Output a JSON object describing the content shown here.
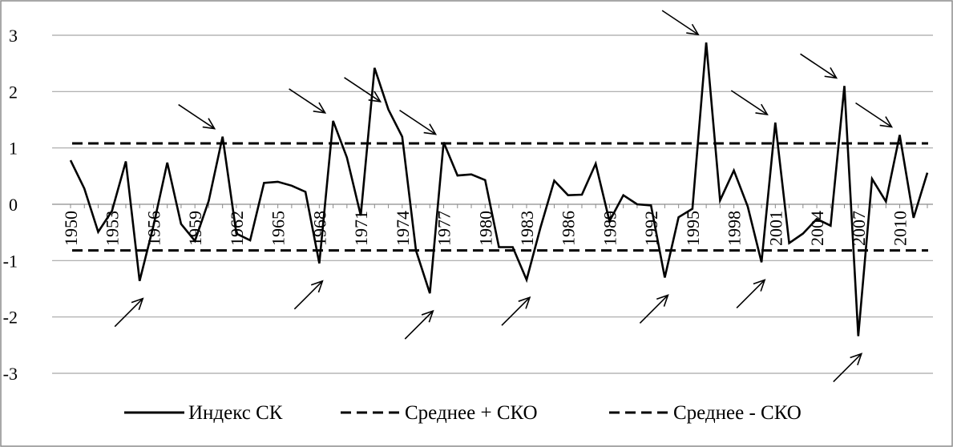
{
  "chart_data": {
    "type": "line",
    "title": "",
    "xlabel": "",
    "ylabel": "",
    "ylim": [
      -3,
      3
    ],
    "yticks": [
      3,
      2,
      1,
      0,
      -1,
      -2,
      -3
    ],
    "xlim": [
      1950,
      2012
    ],
    "xticks": [
      1950,
      1953,
      1956,
      1959,
      1962,
      1965,
      1968,
      1971,
      1974,
      1977,
      1980,
      1983,
      1986,
      1989,
      1992,
      1995,
      1998,
      2001,
      2004,
      2007,
      2010
    ],
    "grid": "horizontal",
    "legend_position": "bottom",
    "series": [
      {
        "name": "Индекс СК",
        "style": "solid",
        "color": "#000000",
        "x": [
          1950,
          1951,
          1952,
          1953,
          1954,
          1955,
          1956,
          1957,
          1958,
          1959,
          1960,
          1961,
          1962,
          1963,
          1964,
          1965,
          1966,
          1967,
          1968,
          1969,
          1970,
          1971,
          1972,
          1973,
          1974,
          1975,
          1976,
          1977,
          1978,
          1979,
          1980,
          1981,
          1982,
          1983,
          1984,
          1985,
          1986,
          1987,
          1988,
          1989,
          1990,
          1991,
          1992,
          1993,
          1994,
          1995,
          1996,
          1997,
          1998,
          1999,
          2000,
          2001,
          2002,
          2003,
          2004,
          2005,
          2006,
          2007,
          2008,
          2009,
          2010,
          2011,
          2012
        ],
        "values": [
          0.78,
          0.28,
          -0.49,
          -0.12,
          0.76,
          -1.36,
          -0.38,
          0.74,
          -0.35,
          -0.65,
          0.06,
          1.2,
          -0.52,
          -0.64,
          0.38,
          0.4,
          0.33,
          0.22,
          -1.05,
          1.48,
          0.83,
          -0.2,
          2.42,
          1.68,
          1.2,
          -0.82,
          -1.58,
          1.1,
          0.51,
          0.53,
          0.43,
          -0.76,
          -0.76,
          -1.34,
          -0.42,
          0.42,
          0.16,
          0.17,
          0.72,
          -0.3,
          0.16,
          0.0,
          -0.02,
          -1.3,
          -0.23,
          -0.08,
          2.87,
          0.07,
          0.6,
          -0.04,
          -1.03,
          1.45,
          -0.69,
          -0.52,
          -0.26,
          -0.38,
          2.1,
          -2.34,
          0.45,
          0.05,
          1.23,
          -0.24,
          0.56
        ]
      },
      {
        "name": "Среднее + СКО",
        "style": "dashed",
        "color": "#000000",
        "constant": 1.08
      },
      {
        "name": "Среднее - СКО",
        "style": "dashed",
        "color": "#000000",
        "constant": -0.82
      }
    ],
    "annotations": {
      "marker": "arrow",
      "down_arrows_at": [
        1961,
        1969,
        1973,
        1977,
        1996,
        2001,
        2006,
        2010
      ],
      "up_arrows_at": [
        1955,
        1968,
        1976,
        1983,
        1993,
        2000,
        2007
      ]
    }
  }
}
